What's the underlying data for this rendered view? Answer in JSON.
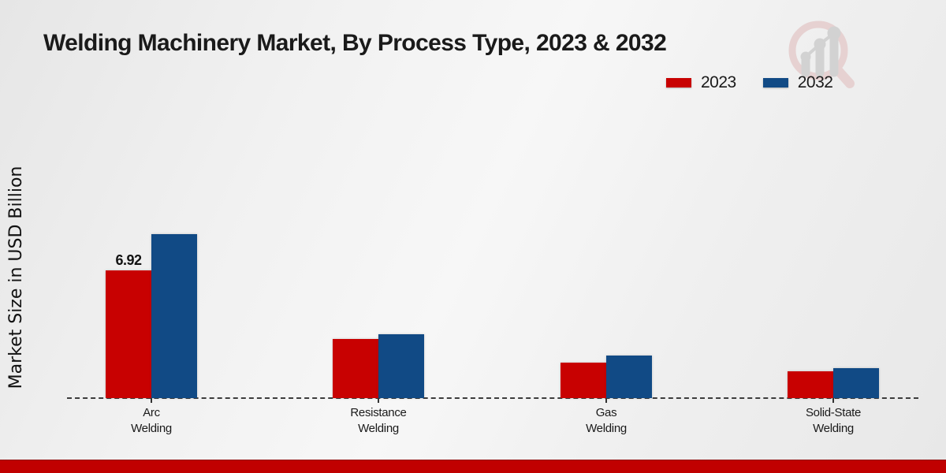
{
  "title": "Welding Machinery Market, By Process Type, 2023 & 2032",
  "y_axis_label": "Market Size in USD Billion",
  "legend": {
    "position": "top-right",
    "items": [
      {
        "label": "2023",
        "color": "#c80101"
      },
      {
        "label": "2032",
        "color": "#114a85"
      }
    ]
  },
  "watermark": {
    "name": "market-research-future-logo",
    "ring_color": "#e6d1d1",
    "bars_color": "#d2d2d2"
  },
  "footer": {
    "bar_color": "#c00000"
  },
  "chart_data": {
    "type": "bar",
    "title": "Welding Machinery Market, By Process Type, 2023 & 2032",
    "xlabel": "",
    "ylabel": "Market Size in USD Billion",
    "categories": [
      "Arc\nWelding",
      "Resistance\nWelding",
      "Gas\nWelding",
      "Solid-State\nWelding"
    ],
    "series": [
      {
        "name": "2023",
        "color": "#c80101",
        "values": [
          6.92,
          3.2,
          1.92,
          1.45
        ]
      },
      {
        "name": "2032",
        "color": "#114a85",
        "values": [
          8.88,
          3.46,
          2.31,
          1.62
        ]
      }
    ],
    "data_labels": [
      {
        "series": "2023",
        "category": "Arc\nWelding",
        "text": "6.92"
      }
    ],
    "ylim": [
      0,
      9.5
    ],
    "grid": false,
    "axis_style": "dashed-baseline-only",
    "legend_position": "top-right"
  }
}
